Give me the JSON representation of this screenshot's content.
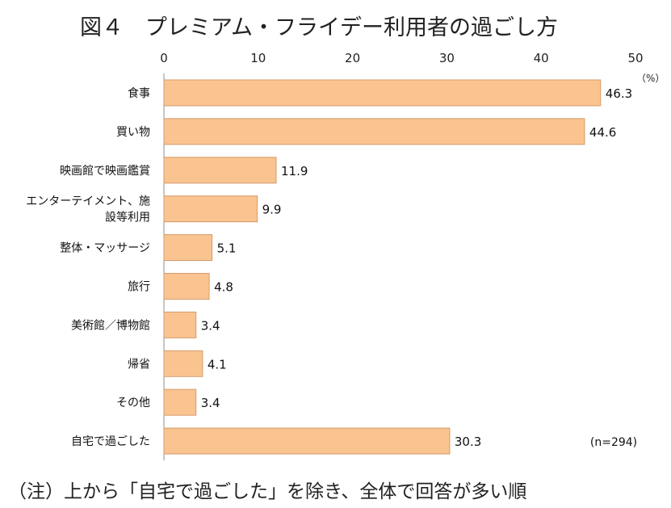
{
  "chart_data": {
    "type": "bar",
    "orientation": "horizontal",
    "title": "図４　プレミアム・フライデー利用者の過ごし方",
    "unit": "（%）",
    "xlim": [
      0,
      50
    ],
    "xticks": [
      "0",
      "10",
      "20",
      "30",
      "40",
      "50"
    ],
    "categories": [
      [
        "食事"
      ],
      [
        "買い物"
      ],
      [
        "映画館で映画鑑賞"
      ],
      [
        "エンターテイメント、施",
        "設等利用"
      ],
      [
        "整体・マッサージ"
      ],
      [
        "旅行"
      ],
      [
        "美術館／博物館"
      ],
      [
        "帰省"
      ],
      [
        "その他"
      ],
      [
        "自宅で過ごした"
      ]
    ],
    "values": [
      46.3,
      44.6,
      11.9,
      9.9,
      5.1,
      4.8,
      3.4,
      4.1,
      3.4,
      30.3
    ],
    "value_labels": [
      "46.3",
      "44.6",
      "11.9",
      "9.9",
      "5.1",
      "4.8",
      "3.4",
      "4.1",
      "3.4",
      "30.3"
    ],
    "sample_size": "(n=294)",
    "note": "（注）上から「自宅で過ごした」を除き、全体で回答が多い順",
    "bar_color": "#fac491",
    "bar_edge_color": "#d49a6a",
    "grid": false
  }
}
